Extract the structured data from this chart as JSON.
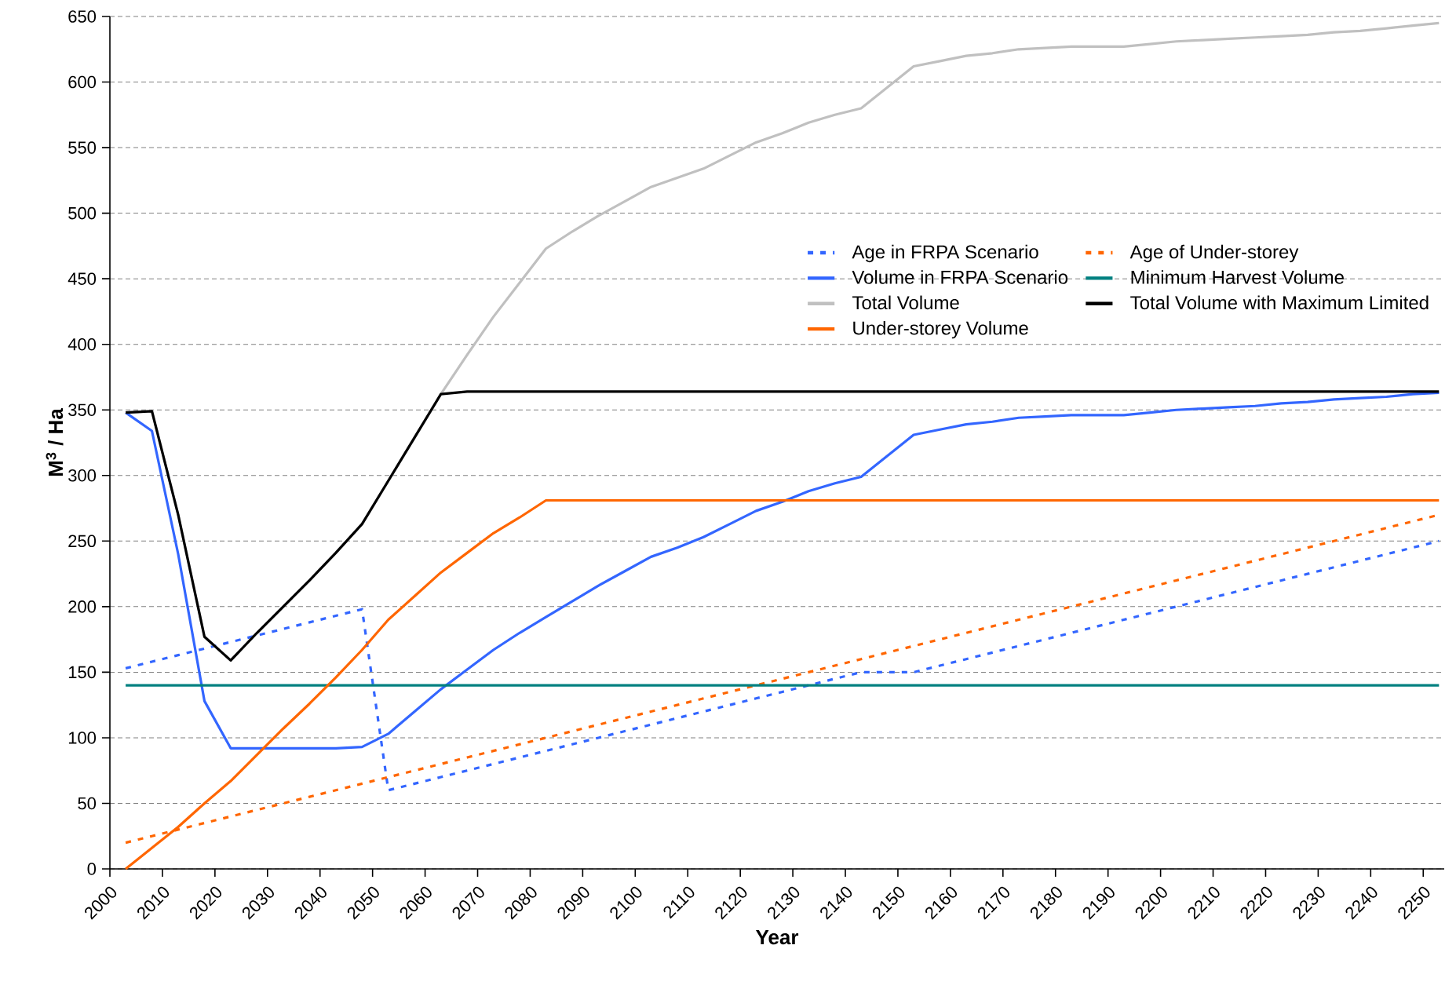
{
  "chart_data": {
    "type": "line",
    "xlabel": "Year",
    "ylabel": "M$^{3}$ / Ha",
    "x": [
      2003,
      2008,
      2013,
      2018,
      2023,
      2028,
      2033,
      2038,
      2043,
      2048,
      2053,
      2058,
      2063,
      2068,
      2073,
      2078,
      2083,
      2088,
      2093,
      2098,
      2103,
      2108,
      2113,
      2118,
      2123,
      2128,
      2133,
      2138,
      2143,
      2148,
      2153,
      2158,
      2163,
      2168,
      2173,
      2178,
      2183,
      2188,
      2193,
      2198,
      2203,
      2208,
      2213,
      2218,
      2223,
      2228,
      2233,
      2238,
      2243,
      2248,
      2253
    ],
    "series": [
      {
        "name": "Age in FRPA Scenario",
        "color": "#3366ff",
        "line_style": "dotted",
        "values": [
          153,
          158,
          163,
          168,
          173,
          178,
          183,
          188,
          193,
          198,
          60,
          65,
          70,
          75,
          80,
          85,
          90,
          95,
          100,
          105,
          110,
          115,
          120,
          125,
          130,
          135,
          140,
          145,
          150,
          150,
          150,
          155,
          160,
          165,
          170,
          175,
          180,
          185,
          190,
          195,
          200,
          205,
          210,
          215,
          220,
          225,
          230,
          235,
          240,
          245,
          250
        ]
      },
      {
        "name": "Age of Under-storey",
        "color": "#ff6600",
        "line_style": "dotted",
        "values": [
          20,
          25,
          30,
          35,
          40,
          45,
          50,
          55,
          60,
          65,
          70,
          75,
          80,
          85,
          90,
          95,
          100,
          105,
          110,
          115,
          120,
          125,
          130,
          135,
          140,
          145,
          150,
          155,
          160,
          165,
          170,
          175,
          180,
          185,
          190,
          195,
          200,
          205,
          210,
          215,
          220,
          225,
          230,
          235,
          240,
          245,
          250,
          255,
          260,
          265,
          270
        ]
      },
      {
        "name": "Volume in FRPA Scenario",
        "color": "#3366ff",
        "line_style": "solid",
        "values": [
          348,
          334,
          240,
          128,
          92,
          92,
          92,
          92,
          92,
          93,
          103,
          120,
          137,
          152,
          167,
          180,
          192,
          204,
          216,
          227,
          238,
          245,
          253,
          263,
          273,
          280,
          288,
          294,
          299,
          315,
          331,
          335,
          339,
          341,
          344,
          345,
          346,
          346,
          346,
          348,
          350,
          351,
          352,
          353,
          355,
          356,
          358,
          359,
          360,
          362,
          363
        ]
      },
      {
        "name": "Minimum Harvest Volume",
        "color": "#008080",
        "line_style": "solid",
        "values": [
          140,
          140,
          140,
          140,
          140,
          140,
          140,
          140,
          140,
          140,
          140,
          140,
          140,
          140,
          140,
          140,
          140,
          140,
          140,
          140,
          140,
          140,
          140,
          140,
          140,
          140,
          140,
          140,
          140,
          140,
          140,
          140,
          140,
          140,
          140,
          140,
          140,
          140,
          140,
          140,
          140,
          140,
          140,
          140,
          140,
          140,
          140,
          140,
          140,
          140,
          140
        ]
      },
      {
        "name": "Total Volume",
        "color": "#c0c0c0",
        "line_style": "solid",
        "values": [
          348,
          349,
          270,
          177,
          159,
          180,
          200,
          220,
          241,
          263,
          296,
          329,
          362,
          392,
          421,
          447,
          473,
          486,
          498,
          509,
          520,
          527,
          534,
          544,
          554,
          561,
          569,
          575,
          580,
          596,
          612,
          616,
          620,
          622,
          625,
          626,
          627,
          627,
          627,
          629,
          631,
          632,
          633,
          634,
          635,
          636,
          638,
          639,
          641,
          643,
          645
        ]
      },
      {
        "name": "Total Volume with Maximum Limited",
        "color": "#000000",
        "line_style": "solid",
        "values": [
          348,
          349,
          270,
          177,
          159,
          180,
          200,
          220,
          241,
          263,
          296,
          329,
          362,
          364,
          364,
          364,
          364,
          364,
          364,
          364,
          364,
          364,
          364,
          364,
          364,
          364,
          364,
          364,
          364,
          364,
          364,
          364,
          364,
          364,
          364,
          364,
          364,
          364,
          364,
          364,
          364,
          364,
          364,
          364,
          364,
          364,
          364,
          364,
          364,
          364,
          364
        ]
      },
      {
        "name": "Under-storey Volume",
        "color": "#ff6600",
        "line_style": "solid",
        "values": [
          0,
          16,
          32,
          50,
          67,
          87,
          107,
          126,
          146,
          167,
          190,
          208,
          226,
          241,
          256,
          268,
          281,
          281,
          281,
          281,
          281,
          281,
          281,
          281,
          281,
          281,
          281,
          281,
          281,
          281,
          281,
          281,
          281,
          281,
          281,
          281,
          281,
          281,
          281,
          281,
          281,
          281,
          281,
          281,
          281,
          281,
          281,
          281,
          281,
          281,
          281
        ]
      }
    ],
    "xlim": [
      2000,
      2254
    ],
    "xticks": [
      2000,
      2010,
      2020,
      2030,
      2040,
      2050,
      2060,
      2070,
      2080,
      2090,
      2100,
      2110,
      2120,
      2130,
      2140,
      2150,
      2160,
      2170,
      2180,
      2190,
      2200,
      2210,
      2220,
      2230,
      2240,
      2250
    ],
    "ylim": [
      0,
      650
    ],
    "yticks": [
      0,
      50,
      100,
      150,
      200,
      250,
      300,
      350,
      400,
      450,
      500,
      550,
      600,
      650
    ],
    "grid": "y",
    "legend": "top right",
    "marker": "none"
  }
}
